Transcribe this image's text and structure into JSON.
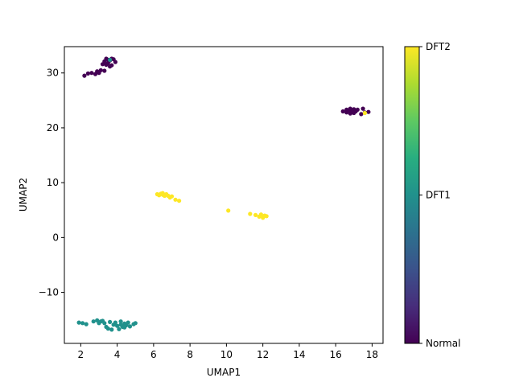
{
  "chart_data": {
    "type": "scatter",
    "title": "",
    "xlabel": "UMAP1",
    "ylabel": "UMAP2",
    "xlim": [
      1.1,
      18.6
    ],
    "ylim": [
      -19.3,
      34.8
    ],
    "xticks": [
      2,
      4,
      6,
      8,
      10,
      12,
      14,
      16,
      18
    ],
    "yticks": [
      -10,
      0,
      10,
      20,
      30
    ],
    "colorbar": {
      "colormap": "viridis",
      "tick_labels": [
        "Normal",
        "DFT1",
        "DFT2"
      ],
      "tick_values": [
        0,
        1,
        2
      ],
      "range": [
        0,
        2
      ]
    },
    "series": [
      {
        "name": "Normal",
        "class_value": 0,
        "points": [
          [
            2.2,
            29.5
          ],
          [
            2.4,
            29.9
          ],
          [
            2.6,
            30.0
          ],
          [
            2.8,
            29.8
          ],
          [
            2.9,
            30.3
          ],
          [
            3.1,
            30.5
          ],
          [
            3.0,
            30.0
          ],
          [
            3.3,
            30.4
          ],
          [
            3.2,
            31.6
          ],
          [
            3.3,
            32.1
          ],
          [
            3.4,
            32.6
          ],
          [
            3.5,
            31.8
          ],
          [
            3.6,
            32.3
          ],
          [
            3.7,
            31.4
          ],
          [
            3.8,
            32.5
          ],
          [
            3.9,
            32.0
          ],
          [
            3.6,
            31.2
          ],
          [
            3.4,
            31.5
          ],
          [
            3.7,
            32.6
          ],
          [
            3.5,
            32.4
          ],
          [
            16.4,
            23.0
          ],
          [
            16.6,
            22.8
          ],
          [
            16.7,
            23.2
          ],
          [
            16.8,
            22.6
          ],
          [
            16.9,
            23.1
          ],
          [
            17.0,
            23.4
          ],
          [
            17.0,
            22.7
          ],
          [
            17.1,
            23.0
          ],
          [
            17.2,
            23.3
          ],
          [
            16.6,
            23.3
          ],
          [
            16.8,
            23.5
          ],
          [
            17.5,
            23.5
          ],
          [
            17.6,
            22.8
          ],
          [
            17.8,
            22.9
          ],
          [
            17.4,
            22.5
          ],
          [
            16.9,
            22.9
          ]
        ]
      },
      {
        "name": "DFT1",
        "class_value": 1,
        "points": [
          [
            1.9,
            -15.5
          ],
          [
            2.1,
            -15.6
          ],
          [
            2.3,
            -15.8
          ],
          [
            2.7,
            -15.3
          ],
          [
            2.9,
            -15.1
          ],
          [
            3.0,
            -15.6
          ],
          [
            3.1,
            -15.3
          ],
          [
            3.2,
            -15.2
          ],
          [
            3.3,
            -15.6
          ],
          [
            3.4,
            -16.3
          ],
          [
            3.5,
            -16.6
          ],
          [
            3.7,
            -16.8
          ],
          [
            3.9,
            -15.5
          ],
          [
            4.0,
            -16.1
          ],
          [
            4.1,
            -16.7
          ],
          [
            4.2,
            -15.3
          ],
          [
            4.3,
            -16.3
          ],
          [
            4.4,
            -15.7
          ],
          [
            4.5,
            -16.0
          ],
          [
            4.6,
            -15.5
          ],
          [
            4.7,
            -16.2
          ],
          [
            4.9,
            -15.8
          ],
          [
            5.0,
            -15.6
          ],
          [
            3.8,
            -15.9
          ],
          [
            4.2,
            -15.9
          ],
          [
            3.6,
            -15.4
          ],
          [
            4.4,
            -16.4
          ],
          [
            3.6,
            32.4
          ]
        ]
      },
      {
        "name": "DFT2",
        "class_value": 2,
        "points": [
          [
            6.2,
            7.9
          ],
          [
            6.3,
            7.7
          ],
          [
            6.4,
            8.0
          ],
          [
            6.5,
            7.8
          ],
          [
            6.6,
            7.6
          ],
          [
            6.7,
            7.9
          ],
          [
            6.5,
            8.1
          ],
          [
            6.9,
            7.3
          ],
          [
            7.0,
            7.5
          ],
          [
            7.2,
            6.9
          ],
          [
            7.4,
            6.7
          ],
          [
            6.8,
            7.6
          ],
          [
            10.1,
            4.9
          ],
          [
            11.3,
            4.3
          ],
          [
            11.6,
            4.1
          ],
          [
            11.8,
            3.8
          ],
          [
            11.9,
            4.2
          ],
          [
            12.0,
            3.6
          ],
          [
            12.1,
            4.0
          ],
          [
            12.2,
            3.9
          ],
          [
            17.6,
            22.7
          ]
        ]
      }
    ]
  }
}
